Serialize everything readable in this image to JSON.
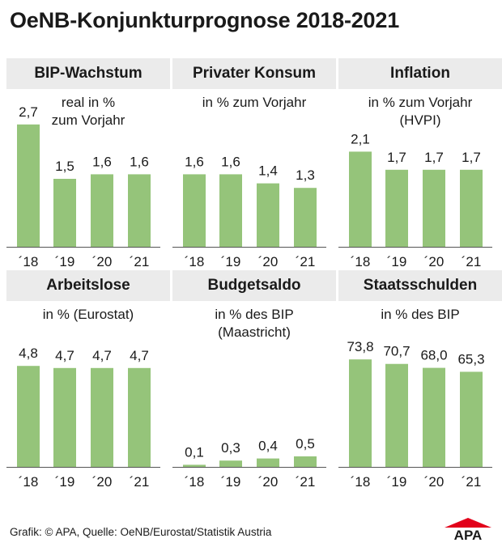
{
  "title": "OeNB-Konjunkturprognose 2018-2021",
  "source": "Grafik: © APA, Quelle: OeNB/Eurostat/Statistik Austria",
  "logo_text": "APA",
  "colors": {
    "bar": "#95c47a",
    "panel_header": "#ebebeb",
    "logo_red": "#e2001a"
  },
  "chart_data": [
    {
      "type": "bar",
      "title": "BIP-Wachstum",
      "subtitle": [
        "real in %",
        "zum Vorjahr"
      ],
      "categories": [
        "´18",
        "´19",
        "´20",
        "´21"
      ],
      "values": [
        2.7,
        1.5,
        1.6,
        1.6
      ],
      "value_labels": [
        "2,7",
        "1,5",
        "1,6",
        "1,6"
      ],
      "ylim": [
        0,
        3.45
      ]
    },
    {
      "type": "bar",
      "title": "Privater Konsum",
      "subtitle": [
        "in % zum Vorjahr"
      ],
      "categories": [
        "´18",
        "´19",
        "´20",
        "´21"
      ],
      "values": [
        1.6,
        1.6,
        1.4,
        1.3
      ],
      "value_labels": [
        "1,6",
        "1,6",
        "1,4",
        "1,3"
      ],
      "ylim": [
        0,
        3.45
      ]
    },
    {
      "type": "bar",
      "title": "Inflation",
      "subtitle": [
        "in % zum Vorjahr",
        "(HVPI)"
      ],
      "categories": [
        "´18",
        "´19",
        "´20",
        "´21"
      ],
      "values": [
        2.1,
        1.7,
        1.7,
        1.7
      ],
      "value_labels": [
        "2,1",
        "1,7",
        "1,7",
        "1,7"
      ],
      "ylim": [
        0,
        3.45
      ]
    },
    {
      "type": "bar",
      "title": "Arbeitslose",
      "subtitle": [
        "in % (Eurostat)"
      ],
      "categories": [
        "´18",
        "´19",
        "´20",
        "´21"
      ],
      "values": [
        4.8,
        4.7,
        4.7,
        4.7
      ],
      "value_labels": [
        "4,8",
        "4,7",
        "4,7",
        "4,7"
      ],
      "ylim": [
        0,
        5.2
      ]
    },
    {
      "type": "bar",
      "title": "Budgetsaldo",
      "subtitle": [
        "in % des BIP",
        "(Maastricht)"
      ],
      "categories": [
        "´18",
        "´19",
        "´20",
        "´21"
      ],
      "values": [
        0.1,
        0.3,
        0.4,
        0.5
      ],
      "value_labels": [
        "0,1",
        "0,3",
        "0,4",
        "0,5"
      ],
      "ylim": [
        0,
        5.2
      ]
    },
    {
      "type": "bar",
      "title": "Staatsschulden",
      "subtitle": [
        "in % des BIP"
      ],
      "categories": [
        "´18",
        "´19",
        "´20",
        "´21"
      ],
      "values": [
        73.8,
        70.7,
        68.0,
        65.3
      ],
      "value_labels": [
        "73,8",
        "70,7",
        "68,0",
        "65,3"
      ],
      "ylim": [
        0,
        81
      ]
    }
  ]
}
